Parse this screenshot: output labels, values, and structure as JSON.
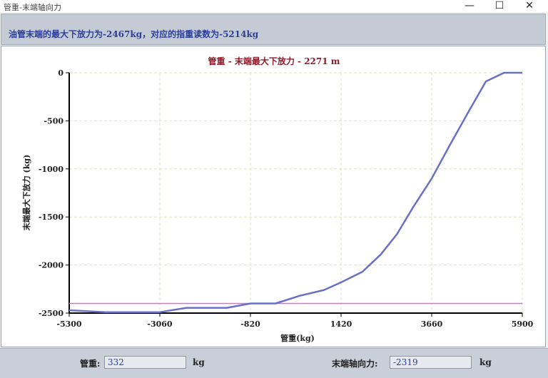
{
  "window": {
    "title": "管重-末端轴向力",
    "minimize_glyph": "—",
    "maximize_glyph": "☐",
    "close_glyph": "✕"
  },
  "message": "油管末端的最大下放力为-2467kg，对应的指重读数为-5214kg",
  "chart_data": {
    "type": "line",
    "title": "管重 - 末端最大下放力 - 2271 m",
    "xlabel": "管重(kg)",
    "ylabel": "末端最大下放力 (kg)",
    "xlim": [
      -5300,
      5900
    ],
    "ylim": [
      -2500,
      0
    ],
    "x_ticks": [
      -5300,
      -3060,
      -820,
      1420,
      3660,
      5900
    ],
    "y_ticks": [
      0,
      -500,
      -1000,
      -1500,
      -2000,
      -2500
    ],
    "grid": true,
    "series": [
      {
        "color": "#6870c8",
        "x": [
          -5300,
          -4400,
          -3060,
          -2400,
          -1400,
          -820,
          -200,
          400,
          1000,
          1420,
          1950,
          2400,
          2800,
          3200,
          3660,
          4100,
          4550,
          5000,
          5450,
          5900
        ],
        "y": [
          -2470,
          -2490,
          -2490,
          -2445,
          -2445,
          -2400,
          -2400,
          -2320,
          -2260,
          -2180,
          -2070,
          -1890,
          -1680,
          -1400,
          -1100,
          -760,
          -420,
          -90,
          210,
          0
        ]
      }
    ],
    "reference_line": {
      "y": -2400,
      "color": "#e26ad8"
    }
  },
  "fields": {
    "pipe_weight_label": "管重:",
    "pipe_weight_value": "332",
    "pipe_weight_unit": "kg",
    "axial_force_label": "末端轴向力:",
    "axial_force_value": "-2319",
    "axial_force_unit": "kg"
  }
}
